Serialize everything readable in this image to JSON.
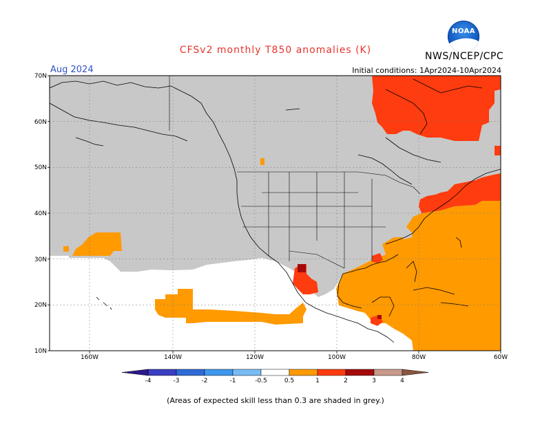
{
  "header": {
    "title": "CFSv2 monthly T850 anomalies (K)",
    "org": "NWS/NCEP/CPC",
    "month": "Aug 2024",
    "initial_conditions": "Initial conditions: 1Apr2024-10Apr2024",
    "logo_text": "NOAA"
  },
  "map": {
    "lat_labels": [
      "70N",
      "60N",
      "50N",
      "40N",
      "30N",
      "20N",
      "10N"
    ],
    "lon_labels": [
      "160W",
      "140W",
      "120W",
      "100W",
      "80W",
      "60W"
    ]
  },
  "legend": {
    "labels": [
      "-4",
      "-3",
      "-2",
      "-1",
      "-0.5",
      "0.5",
      "1",
      "2",
      "3",
      "4"
    ],
    "colors": {
      "lt_-4": "#2a1a8c",
      "-4_-3": "#3a3ec2",
      "-3_-2": "#2f6bd6",
      "-2_-1": "#3d98ee",
      "-1_-0.5": "#78bcf5",
      "-0.5_0.5": "#ffffff",
      "0.5_1": "#ff9a00",
      "1_2": "#ff3c0f",
      "2_3": "#a50a0a",
      "3_4": "#c89888",
      "gt_4": "#8a5640"
    }
  },
  "colors": {
    "low_skill_grey": "#c8c8c8",
    "anomaly_orange": "#ff9a00",
    "anomaly_red": "#ff3c0f",
    "anomaly_darkred": "#a50a0a"
  },
  "footnote": "(Areas of expected skill less than 0.3 are shaded in grey.)"
}
